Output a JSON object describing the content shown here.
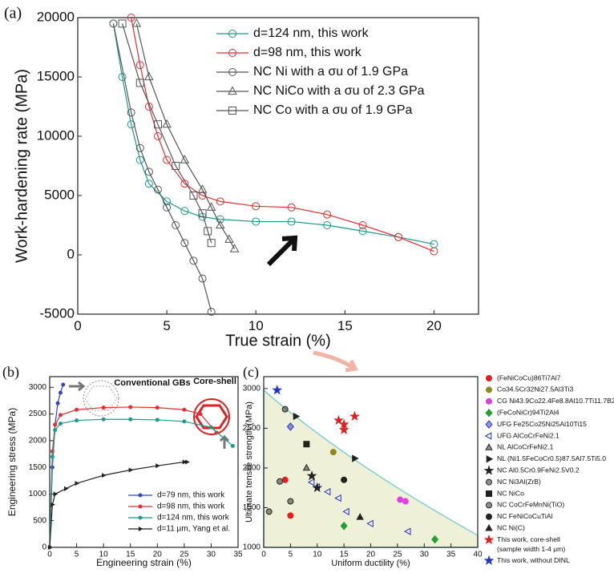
{
  "chart_data": [
    {
      "type": "line",
      "panel_label": "(a)",
      "x_label": "True strain (%)",
      "y_label": "Work-hardening rate (MPa)",
      "xlim": [
        0,
        22.5
      ],
      "ylim": [
        -5000,
        20000
      ],
      "xticks": [
        0,
        5,
        10,
        15,
        20
      ],
      "yticks": [
        -5000,
        0,
        5000,
        10000,
        15000,
        20000
      ],
      "series": [
        {
          "name": "d=124 nm, this work",
          "color": "#1a9a8f",
          "marker": "circle",
          "x": [
            2,
            2.5,
            3,
            3.5,
            4,
            5,
            6,
            7,
            8,
            10,
            12,
            14,
            16,
            18,
            20
          ],
          "values": [
            19500,
            15000,
            11000,
            8000,
            6000,
            4500,
            3700,
            3200,
            3000,
            2800,
            2800,
            2500,
            2000,
            1500,
            900
          ]
        },
        {
          "name": "d=98 nm, this work",
          "color": "#e03030",
          "marker": "circle",
          "x": [
            3,
            3.5,
            4,
            4.5,
            5,
            6,
            7,
            8,
            10,
            12,
            14,
            16,
            18,
            20
          ],
          "values": [
            20000,
            16000,
            12500,
            10000,
            8000,
            6000,
            5000,
            4500,
            4100,
            4000,
            3400,
            2500,
            1500,
            300
          ]
        },
        {
          "name": "NC Ni with a σu of 1.9 GPa",
          "color": "#555555",
          "marker": "circle",
          "x": [
            2,
            3,
            3.5,
            4,
            4.5,
            5,
            5.5,
            6,
            6.5,
            7,
            7.5
          ],
          "values": [
            19500,
            12000,
            9000,
            7000,
            5500,
            4000,
            2500,
            1000,
            -500,
            -2000,
            -4800
          ]
        },
        {
          "name": "NC NiCo with a σu of 2.3 GPa",
          "color": "#555555",
          "marker": "triangle",
          "x": [
            3.3,
            4,
            5,
            6,
            7,
            7.5,
            8,
            8.5,
            8.8
          ],
          "values": [
            19500,
            15000,
            11000,
            8000,
            5500,
            4000,
            2500,
            1300,
            500
          ]
        },
        {
          "name": "NC Co with a σu of 1.9 GPa",
          "color": "#555555",
          "marker": "square",
          "x": [
            2.5,
            3.5,
            4.5,
            5.5,
            6.5,
            7,
            7.3,
            7.5
          ],
          "values": [
            19500,
            14500,
            11000,
            7500,
            5000,
            3500,
            2000,
            1000
          ]
        }
      ]
    },
    {
      "type": "line",
      "panel_label": "(b)",
      "x_label": "Engineering strain (%)",
      "y_label": "Engineering stress (MPa)",
      "xlim": [
        0,
        35
      ],
      "ylim": [
        0,
        3200
      ],
      "xticks": [
        0,
        5,
        10,
        15,
        20,
        25,
        30,
        35
      ],
      "yticks": [
        0,
        500,
        1000,
        1500,
        2000,
        2500,
        3000
      ],
      "annotations": [
        "Conventional GBs",
        "Core-shell"
      ],
      "series": [
        {
          "name": "d=79 nm, this work",
          "color": "#3344cc",
          "marker": "circle",
          "x": [
            0,
            0.5,
            1,
            1.5,
            2,
            2.5
          ],
          "values": [
            0,
            1500,
            2300,
            2700,
            2900,
            3050
          ]
        },
        {
          "name": "d=98 nm, this work",
          "color": "#e03030",
          "marker": "circle",
          "x": [
            0,
            0.5,
            1,
            2,
            5,
            10,
            15,
            20,
            25,
            28,
            31
          ],
          "values": [
            0,
            1800,
            2300,
            2480,
            2580,
            2620,
            2630,
            2620,
            2580,
            2500,
            2150
          ]
        },
        {
          "name": "d=124 nm, this work",
          "color": "#1a9a8f",
          "marker": "circle",
          "x": [
            0,
            0.5,
            1,
            2,
            5,
            10,
            15,
            20,
            25,
            30,
            34
          ],
          "values": [
            0,
            1700,
            2200,
            2320,
            2380,
            2400,
            2400,
            2390,
            2360,
            2250,
            1900
          ]
        },
        {
          "name": "d=11 μm, Yang et al.",
          "color": "#222222",
          "marker": "triangle-right",
          "x": [
            0,
            0.5,
            1,
            3,
            5,
            10,
            15,
            20,
            25,
            25.5
          ],
          "values": [
            0,
            800,
            1000,
            1100,
            1200,
            1350,
            1450,
            1530,
            1600,
            1600
          ]
        }
      ]
    },
    {
      "type": "scatter",
      "panel_label": "(c)",
      "x_label": "Uniform ductility (%)",
      "y_label": "Ultimate tensile strength (MPa)",
      "xlim": [
        0,
        40
      ],
      "ylim": [
        1000,
        3150
      ],
      "xticks": [
        0,
        5,
        10,
        15,
        20,
        25,
        30,
        35,
        40
      ],
      "yticks": [
        1000,
        1500,
        2000,
        2500,
        3000
      ],
      "legend_note": "(sample width 1-4 μm)",
      "series": [
        {
          "name": "(FeNiCoCu)86Ti7Al7",
          "color": "#e02020",
          "marker": "circle",
          "x": [
            4,
            5
          ],
          "values": [
            1850,
            1400
          ]
        },
        {
          "name": "Co34.5Cr32Ni27.5Al3Ti3",
          "color": "#8a8a20",
          "marker": "circle",
          "x": [
            13
          ],
          "values": [
            2200
          ]
        },
        {
          "name": "CG Ni43.9Co22.4Fe8.8Al10.7Ti11.7B2.5",
          "color": "#e040e0",
          "marker": "circle",
          "x": [
            25.5,
            26.5
          ],
          "values": [
            1600,
            1580
          ]
        },
        {
          "name": "(FeCoNiCr)94Ti2Al4",
          "color": "#20a030",
          "marker": "diamond",
          "x": [
            15,
            32
          ],
          "values": [
            1270,
            1100
          ]
        },
        {
          "name": "UFG Fe25Co25Ni25Al10Ti15",
          "color": "#2233cc",
          "marker": "diamond-half",
          "x": [
            5
          ],
          "values": [
            2520
          ]
        },
        {
          "name": "UFG AlCoCrFeNi2.1",
          "color": "#2233cc",
          "marker": "triangle-left-open",
          "x": [
            9,
            10,
            12,
            14,
            15.5,
            20,
            27
          ],
          "values": [
            1820,
            1760,
            1700,
            1620,
            1450,
            1300,
            1200
          ]
        },
        {
          "name": "NL AlCoCrFeNi2.1",
          "color": "#222222",
          "marker": "triangle-half",
          "x": [
            8
          ],
          "values": [
            2000
          ]
        },
        {
          "name": "NL (Ni1.5FeCoCr0.5)87.5Al7.5Ti5.0",
          "color": "#222222",
          "marker": "triangle-right",
          "x": [
            6,
            17
          ],
          "values": [
            2650,
            2120
          ]
        },
        {
          "name": "NC Al0.5Cr0.9FeNi2.5V0.2",
          "color": "#222222",
          "marker": "star",
          "x": [
            9,
            10
          ],
          "values": [
            1900,
            1750
          ]
        },
        {
          "name": "NC Ni3Al(ZrB)",
          "color": "#222222",
          "marker": "circle-half",
          "x": [
            3,
            4,
            5
          ],
          "values": [
            1830,
            2740,
            1580
          ]
        },
        {
          "name": "NC NiCo",
          "color": "#222222",
          "marker": "square",
          "x": [
            8
          ],
          "values": [
            2300
          ]
        },
        {
          "name": "NC CoCrFeMnNi(TiO)",
          "color": "#222222",
          "marker": "circle-half",
          "x": [
            1
          ],
          "values": [
            1450
          ]
        },
        {
          "name": "NC FeNiCoCuTiAl",
          "color": "#222222",
          "marker": "circle",
          "x": [
            15
          ],
          "values": [
            1850
          ]
        },
        {
          "name": "NC Ni(C)",
          "color": "#222222",
          "marker": "triangle",
          "x": [
            18
          ],
          "values": [
            1380
          ]
        },
        {
          "name": "This work, core-shell",
          "color": "#e02020",
          "marker": "star",
          "x": [
            14,
            15,
            15,
            17
          ],
          "values": [
            2600,
            2550,
            2480,
            2650
          ]
        },
        {
          "name": "This work, without DINL",
          "color": "#2233cc",
          "marker": "star",
          "x": [
            2.5
          ],
          "values": [
            2980
          ]
        }
      ]
    }
  ]
}
